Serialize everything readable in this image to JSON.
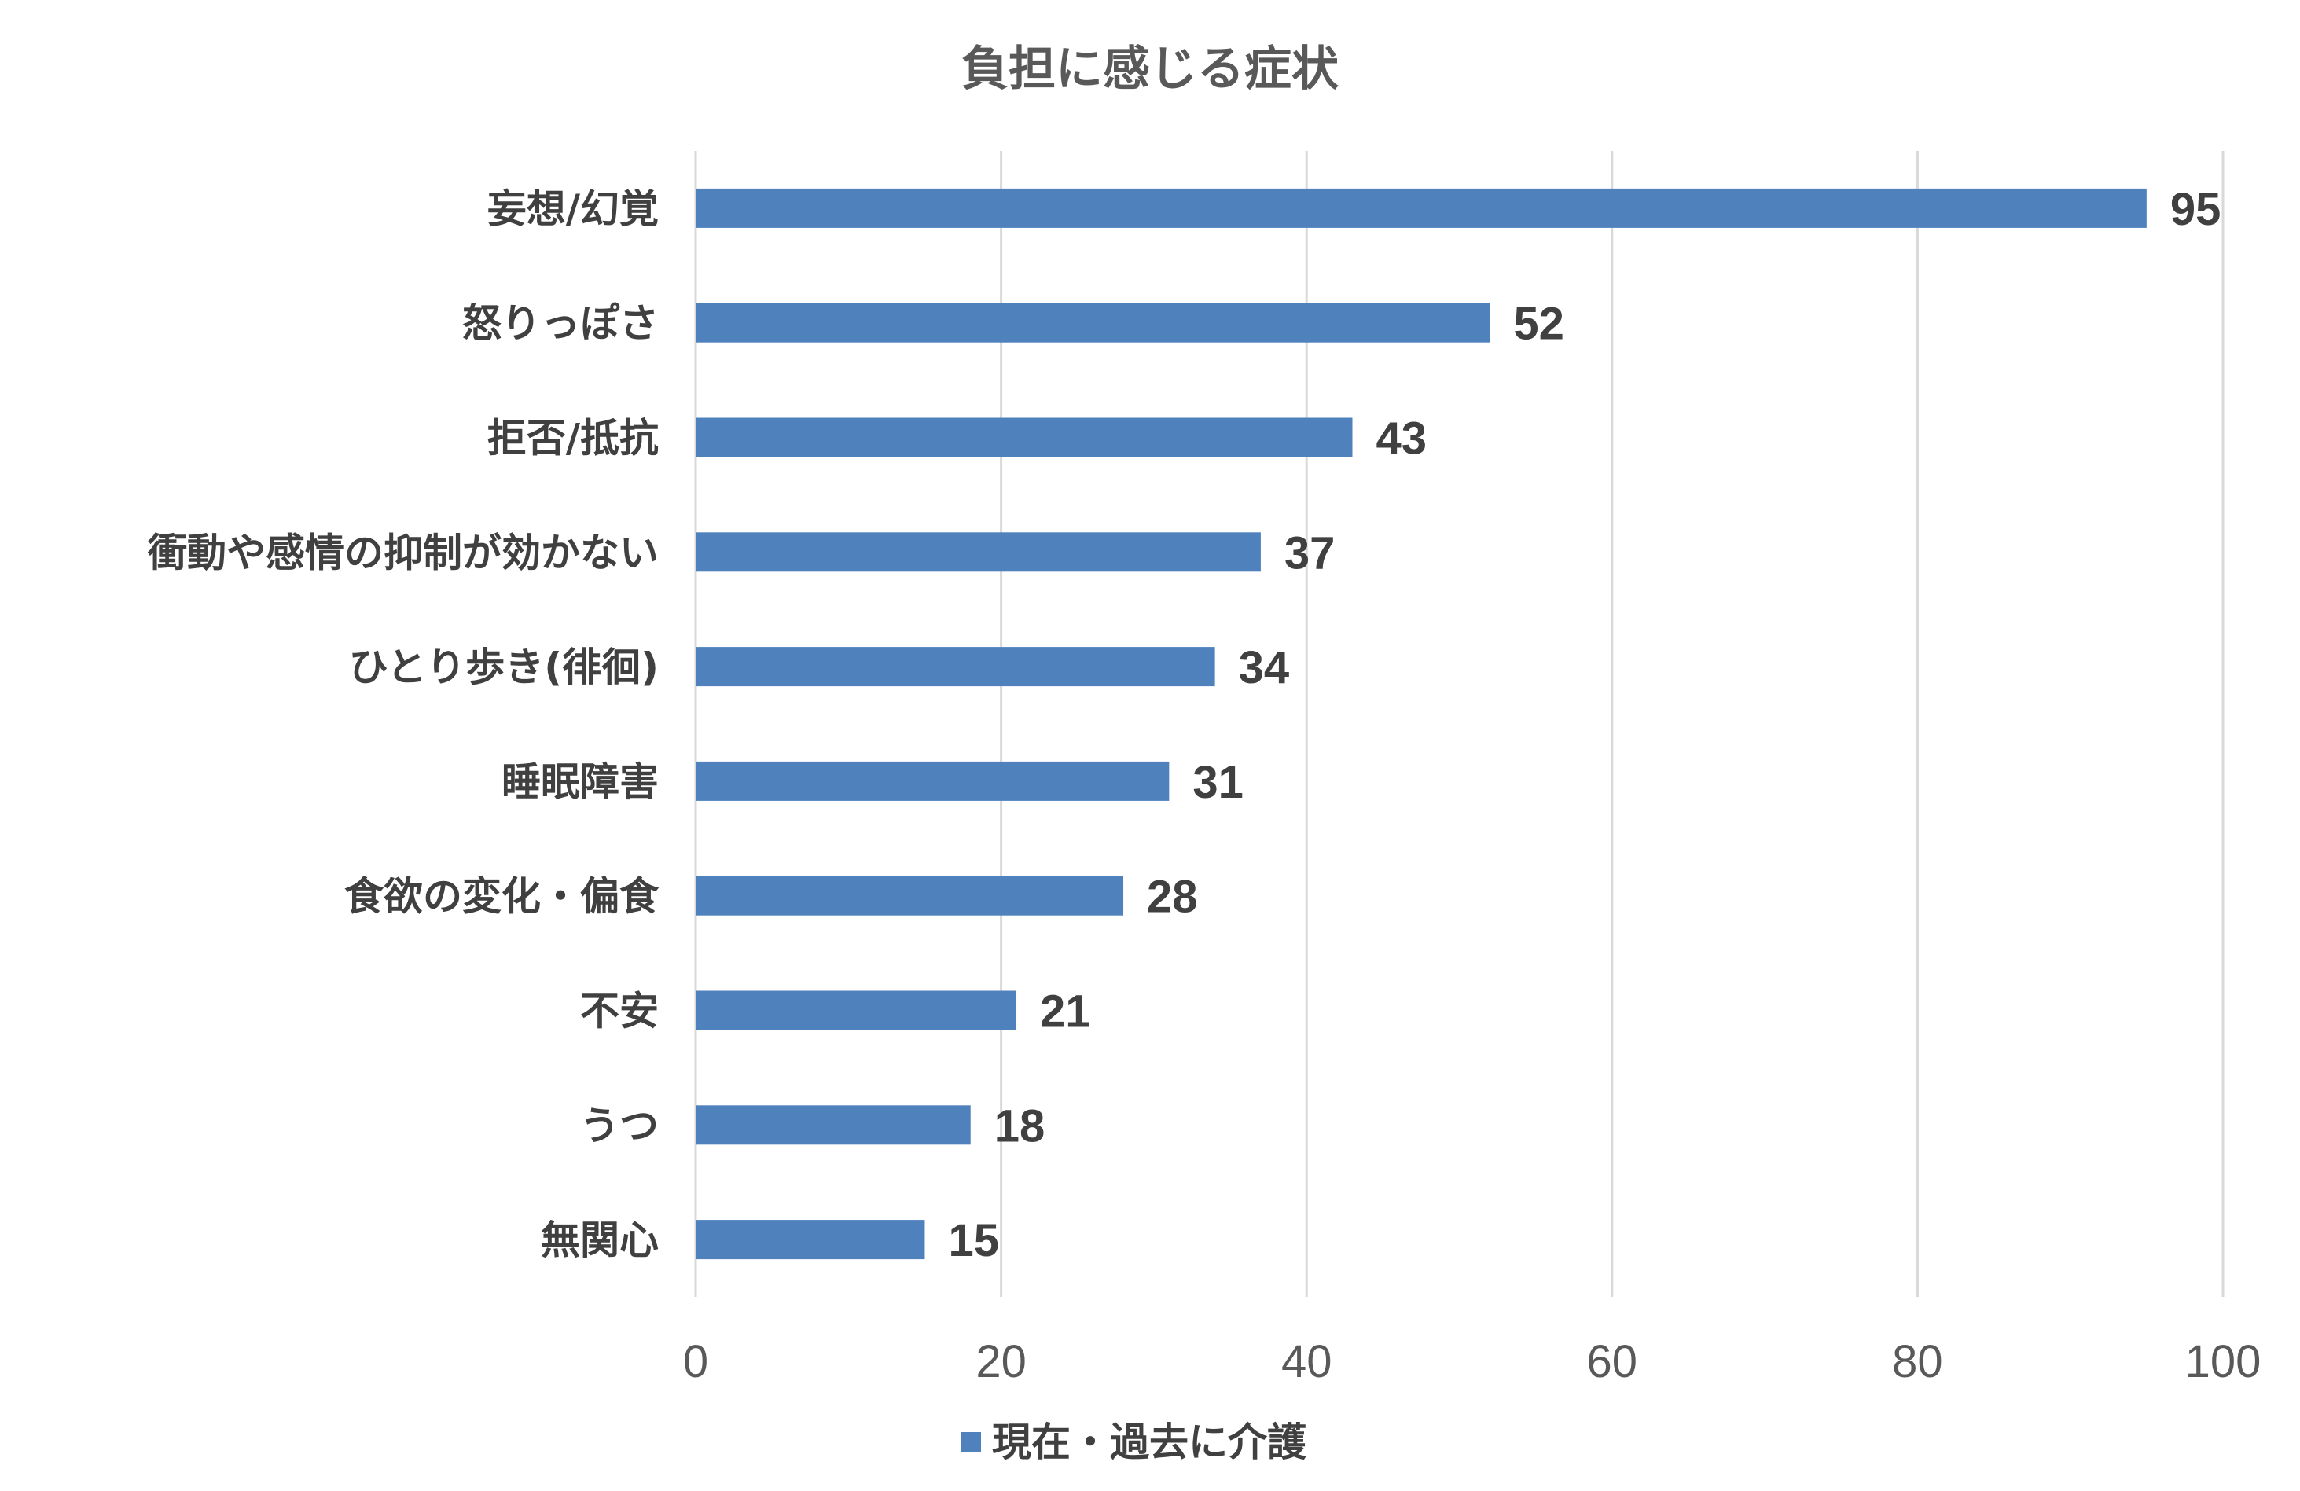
{
  "chart_data": {
    "type": "bar",
    "orientation": "horizontal",
    "title": "負担に感じる症状",
    "categories": [
      "妄想/幻覚",
      "怒りっぽさ",
      "拒否/抵抗",
      "衝動や感情の抑制が効かない",
      "ひとり歩き(徘徊)",
      "睡眠障害",
      "食欲の変化・偏食",
      "不安",
      "うつ",
      "無関心"
    ],
    "series": [
      {
        "name": "現在・過去に介護",
        "values": [
          95,
          52,
          43,
          37,
          34,
          31,
          28,
          21,
          18,
          15
        ]
      }
    ],
    "xlim": [
      0,
      100
    ],
    "xticks": [
      0,
      20,
      40,
      60,
      80,
      100
    ],
    "grid": true,
    "data_labels": true,
    "legend": "bottom",
    "colors": {
      "bar": "#4f81bd"
    }
  }
}
